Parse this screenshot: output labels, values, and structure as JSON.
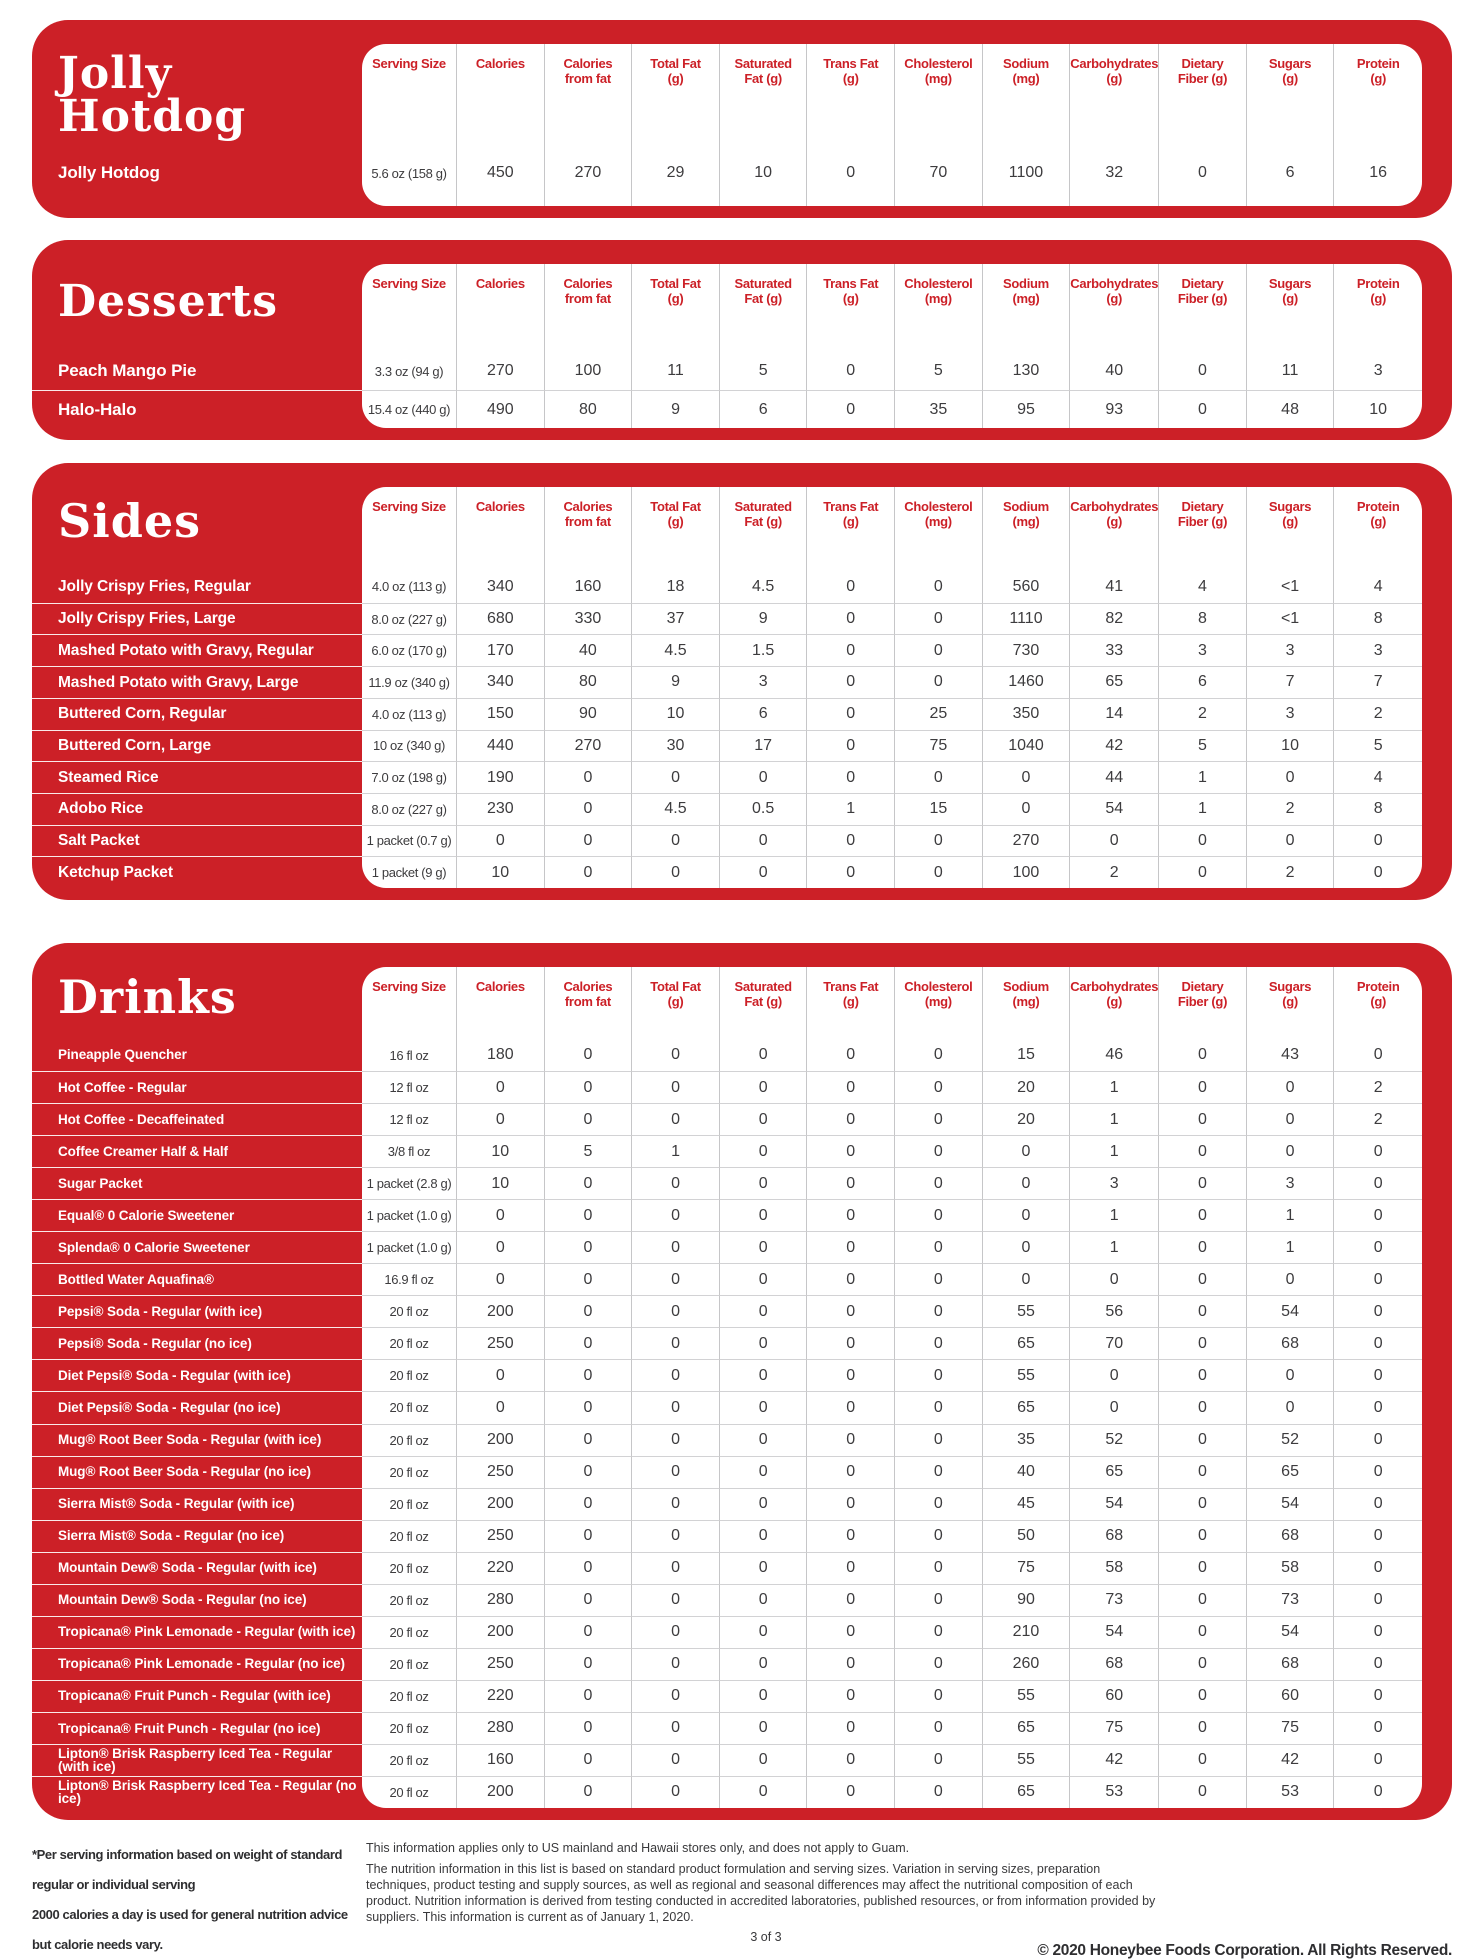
{
  "colors": {
    "panel_red": "#cc2027",
    "header_text_red": "#cc2027",
    "value_text": "#3d3c3e",
    "name_text": "#ffffff",
    "divider_vertical": "#c6c6c8",
    "divider_horizontal": "#d2d2d4"
  },
  "columns": [
    {
      "key": "serving_size",
      "lines": [
        "Serving Size"
      ]
    },
    {
      "key": "calories",
      "lines": [
        "Calories"
      ]
    },
    {
      "key": "calories_from_fat",
      "lines": [
        "Calories",
        "from fat"
      ]
    },
    {
      "key": "total_fat",
      "lines": [
        "Total Fat",
        "(g)"
      ]
    },
    {
      "key": "saturated_fat",
      "lines": [
        "Saturated",
        "Fat (g)"
      ]
    },
    {
      "key": "trans_fat",
      "lines": [
        "Trans Fat",
        "(g)"
      ]
    },
    {
      "key": "cholesterol",
      "lines": [
        "Cholesterol",
        "(mg)"
      ]
    },
    {
      "key": "sodium",
      "lines": [
        "Sodium",
        "(mg)"
      ]
    },
    {
      "key": "carbohydrates",
      "lines": [
        "Carbohydrates",
        "(g)"
      ]
    },
    {
      "key": "dietary_fiber",
      "lines": [
        "Dietary",
        "Fiber (g)"
      ]
    },
    {
      "key": "sugars",
      "lines": [
        "Sugars",
        "(g)"
      ]
    },
    {
      "key": "protein",
      "lines": [
        "Protein",
        "(g)"
      ]
    }
  ],
  "sections": [
    {
      "id": "jolly-hotdog",
      "title_lines": [
        "Jolly",
        "Hotdog"
      ],
      "rows": [
        {
          "name": "Jolly Hotdog",
          "values": [
            "5.6 oz (158 g)",
            "450",
            "270",
            "29",
            "10",
            "0",
            "70",
            "1100",
            "32",
            "0",
            "6",
            "16"
          ]
        }
      ]
    },
    {
      "id": "desserts",
      "title_lines": [
        "Desserts"
      ],
      "rows": [
        {
          "name": "Peach Mango Pie",
          "values": [
            "3.3 oz (94 g)",
            "270",
            "100",
            "11",
            "5",
            "0",
            "5",
            "130",
            "40",
            "0",
            "11",
            "3"
          ]
        },
        {
          "name": "Halo-Halo",
          "values": [
            "15.4 oz (440 g)",
            "490",
            "80",
            "9",
            "6",
            "0",
            "35",
            "95",
            "93",
            "0",
            "48",
            "10"
          ]
        }
      ]
    },
    {
      "id": "sides",
      "title_lines": [
        "Sides"
      ],
      "rows": [
        {
          "name": "Jolly Crispy Fries, Regular",
          "values": [
            "4.0 oz (113 g)",
            "340",
            "160",
            "18",
            "4.5",
            "0",
            "0",
            "560",
            "41",
            "4",
            "<1",
            "4"
          ]
        },
        {
          "name": "Jolly Crispy Fries, Large",
          "values": [
            "8.0 oz (227 g)",
            "680",
            "330",
            "37",
            "9",
            "0",
            "0",
            "1110",
            "82",
            "8",
            "<1",
            "8"
          ]
        },
        {
          "name": "Mashed Potato with Gravy, Regular",
          "values": [
            "6.0 oz (170 g)",
            "170",
            "40",
            "4.5",
            "1.5",
            "0",
            "0",
            "730",
            "33",
            "3",
            "3",
            "3"
          ]
        },
        {
          "name": "Mashed Potato with Gravy, Large",
          "values": [
            "11.9 oz (340 g)",
            "340",
            "80",
            "9",
            "3",
            "0",
            "0",
            "1460",
            "65",
            "6",
            "7",
            "7"
          ]
        },
        {
          "name": "Buttered Corn, Regular",
          "values": [
            "4.0 oz (113 g)",
            "150",
            "90",
            "10",
            "6",
            "0",
            "25",
            "350",
            "14",
            "2",
            "3",
            "2"
          ]
        },
        {
          "name": "Buttered Corn, Large",
          "values": [
            "10 oz (340 g)",
            "440",
            "270",
            "30",
            "17",
            "0",
            "75",
            "1040",
            "42",
            "5",
            "10",
            "5"
          ]
        },
        {
          "name": "Steamed Rice",
          "values": [
            "7.0 oz (198 g)",
            "190",
            "0",
            "0",
            "0",
            "0",
            "0",
            "0",
            "44",
            "1",
            "0",
            "4"
          ]
        },
        {
          "name": "Adobo Rice",
          "values": [
            "8.0 oz (227 g)",
            "230",
            "0",
            "4.5",
            "0.5",
            "1",
            "15",
            "0",
            "54",
            "1",
            "2",
            "8"
          ]
        },
        {
          "name": "Salt Packet",
          "values": [
            "1 packet (0.7 g)",
            "0",
            "0",
            "0",
            "0",
            "0",
            "0",
            "270",
            "0",
            "0",
            "0",
            "0"
          ]
        },
        {
          "name": "Ketchup Packet",
          "values": [
            "1 packet (9 g)",
            "10",
            "0",
            "0",
            "0",
            "0",
            "0",
            "100",
            "2",
            "0",
            "2",
            "0"
          ]
        }
      ]
    },
    {
      "id": "drinks",
      "title_lines": [
        "Drinks"
      ],
      "rows": [
        {
          "name": "Pineapple Quencher",
          "values": [
            "16 fl oz",
            "180",
            "0",
            "0",
            "0",
            "0",
            "0",
            "15",
            "46",
            "0",
            "43",
            "0"
          ]
        },
        {
          "name": "Hot Coffee - Regular",
          "values": [
            "12 fl oz",
            "0",
            "0",
            "0",
            "0",
            "0",
            "0",
            "20",
            "1",
            "0",
            "0",
            "2"
          ]
        },
        {
          "name": "Hot Coffee - Decaffeinated",
          "values": [
            "12 fl oz",
            "0",
            "0",
            "0",
            "0",
            "0",
            "0",
            "20",
            "1",
            "0",
            "0",
            "2"
          ]
        },
        {
          "name": "Coffee Creamer Half & Half",
          "values": [
            "3/8 fl oz",
            "10",
            "5",
            "1",
            "0",
            "0",
            "0",
            "0",
            "1",
            "0",
            "0",
            "0"
          ]
        },
        {
          "name": "Sugar Packet",
          "values": [
            "1 packet (2.8 g)",
            "10",
            "0",
            "0",
            "0",
            "0",
            "0",
            "0",
            "3",
            "0",
            "3",
            "0"
          ]
        },
        {
          "name": "Equal® 0 Calorie Sweetener",
          "values": [
            "1 packet (1.0 g)",
            "0",
            "0",
            "0",
            "0",
            "0",
            "0",
            "0",
            "1",
            "0",
            "1",
            "0"
          ]
        },
        {
          "name": "Splenda® 0 Calorie Sweetener",
          "values": [
            "1 packet (1.0 g)",
            "0",
            "0",
            "0",
            "0",
            "0",
            "0",
            "0",
            "1",
            "0",
            "1",
            "0"
          ]
        },
        {
          "name": "Bottled Water Aquafina®",
          "values": [
            "16.9 fl oz",
            "0",
            "0",
            "0",
            "0",
            "0",
            "0",
            "0",
            "0",
            "0",
            "0",
            "0"
          ]
        },
        {
          "name": "Pepsi® Soda - Regular (with ice)",
          "values": [
            "20 fl oz",
            "200",
            "0",
            "0",
            "0",
            "0",
            "0",
            "55",
            "56",
            "0",
            "54",
            "0"
          ]
        },
        {
          "name": "Pepsi® Soda - Regular (no ice)",
          "values": [
            "20 fl oz",
            "250",
            "0",
            "0",
            "0",
            "0",
            "0",
            "65",
            "70",
            "0",
            "68",
            "0"
          ]
        },
        {
          "name": "Diet Pepsi® Soda - Regular (with ice)",
          "values": [
            "20 fl oz",
            "0",
            "0",
            "0",
            "0",
            "0",
            "0",
            "55",
            "0",
            "0",
            "0",
            "0"
          ]
        },
        {
          "name": "Diet Pepsi® Soda - Regular (no ice)",
          "values": [
            "20 fl oz",
            "0",
            "0",
            "0",
            "0",
            "0",
            "0",
            "65",
            "0",
            "0",
            "0",
            "0"
          ]
        },
        {
          "name": "Mug® Root Beer Soda - Regular (with ice)",
          "values": [
            "20 fl oz",
            "200",
            "0",
            "0",
            "0",
            "0",
            "0",
            "35",
            "52",
            "0",
            "52",
            "0"
          ]
        },
        {
          "name": "Mug® Root Beer Soda - Regular (no ice)",
          "values": [
            "20 fl oz",
            "250",
            "0",
            "0",
            "0",
            "0",
            "0",
            "40",
            "65",
            "0",
            "65",
            "0"
          ]
        },
        {
          "name": "Sierra Mist® Soda - Regular (with ice)",
          "values": [
            "20 fl oz",
            "200",
            "0",
            "0",
            "0",
            "0",
            "0",
            "45",
            "54",
            "0",
            "54",
            "0"
          ]
        },
        {
          "name": "Sierra Mist® Soda - Regular (no ice)",
          "values": [
            "20 fl oz",
            "250",
            "0",
            "0",
            "0",
            "0",
            "0",
            "50",
            "68",
            "0",
            "68",
            "0"
          ]
        },
        {
          "name": "Mountain Dew® Soda - Regular (with ice)",
          "values": [
            "20 fl oz",
            "220",
            "0",
            "0",
            "0",
            "0",
            "0",
            "75",
            "58",
            "0",
            "58",
            "0"
          ]
        },
        {
          "name": "Mountain Dew® Soda - Regular (no ice)",
          "values": [
            "20 fl oz",
            "280",
            "0",
            "0",
            "0",
            "0",
            "0",
            "90",
            "73",
            "0",
            "73",
            "0"
          ]
        },
        {
          "name": "Tropicana® Pink Lemonade - Regular (with ice)",
          "values": [
            "20 fl oz",
            "200",
            "0",
            "0",
            "0",
            "0",
            "0",
            "210",
            "54",
            "0",
            "54",
            "0"
          ]
        },
        {
          "name": "Tropicana® Pink Lemonade - Regular (no ice)",
          "values": [
            "20 fl oz",
            "250",
            "0",
            "0",
            "0",
            "0",
            "0",
            "260",
            "68",
            "0",
            "68",
            "0"
          ]
        },
        {
          "name": "Tropicana® Fruit Punch - Regular (with ice)",
          "values": [
            "20 fl oz",
            "220",
            "0",
            "0",
            "0",
            "0",
            "0",
            "55",
            "60",
            "0",
            "60",
            "0"
          ]
        },
        {
          "name": "Tropicana® Fruit Punch - Regular (no ice)",
          "values": [
            "20 fl oz",
            "280",
            "0",
            "0",
            "0",
            "0",
            "0",
            "65",
            "75",
            "0",
            "75",
            "0"
          ]
        },
        {
          "name": "Lipton® Brisk Raspberry Iced Tea - Regular (with ice)",
          "values": [
            "20 fl oz",
            "160",
            "0",
            "0",
            "0",
            "0",
            "0",
            "55",
            "42",
            "0",
            "42",
            "0"
          ]
        },
        {
          "name": "Lipton® Brisk Raspberry Iced Tea - Regular (no ice)",
          "values": [
            "20 fl oz",
            "200",
            "0",
            "0",
            "0",
            "0",
            "0",
            "65",
            "53",
            "0",
            "53",
            "0"
          ]
        }
      ]
    }
  ],
  "footer": {
    "note_line1": "*Per serving information based on weight of standard regular or individual serving",
    "note_line2": "2000 calories a day is used for general nutrition advice but calorie needs vary.",
    "info_line1": "This information applies only to US mainland and Hawaii stores only, and does not apply to Guam.",
    "info_line2": "The nutrition information in this list is based on standard product formulation and serving sizes. Variation in serving sizes, preparation techniques, product testing and supply sources, as well as regional and seasonal differences may affect the nutritional composition of each product. Nutrition information is derived from testing conducted in accredited laboratories, published resources, or from information provided by suppliers. This information is current as of January 1, 2020.",
    "page": "3 of 3",
    "copyright": "© 2020 Honeybee Foods Corporation.  All Rights Reserved."
  }
}
